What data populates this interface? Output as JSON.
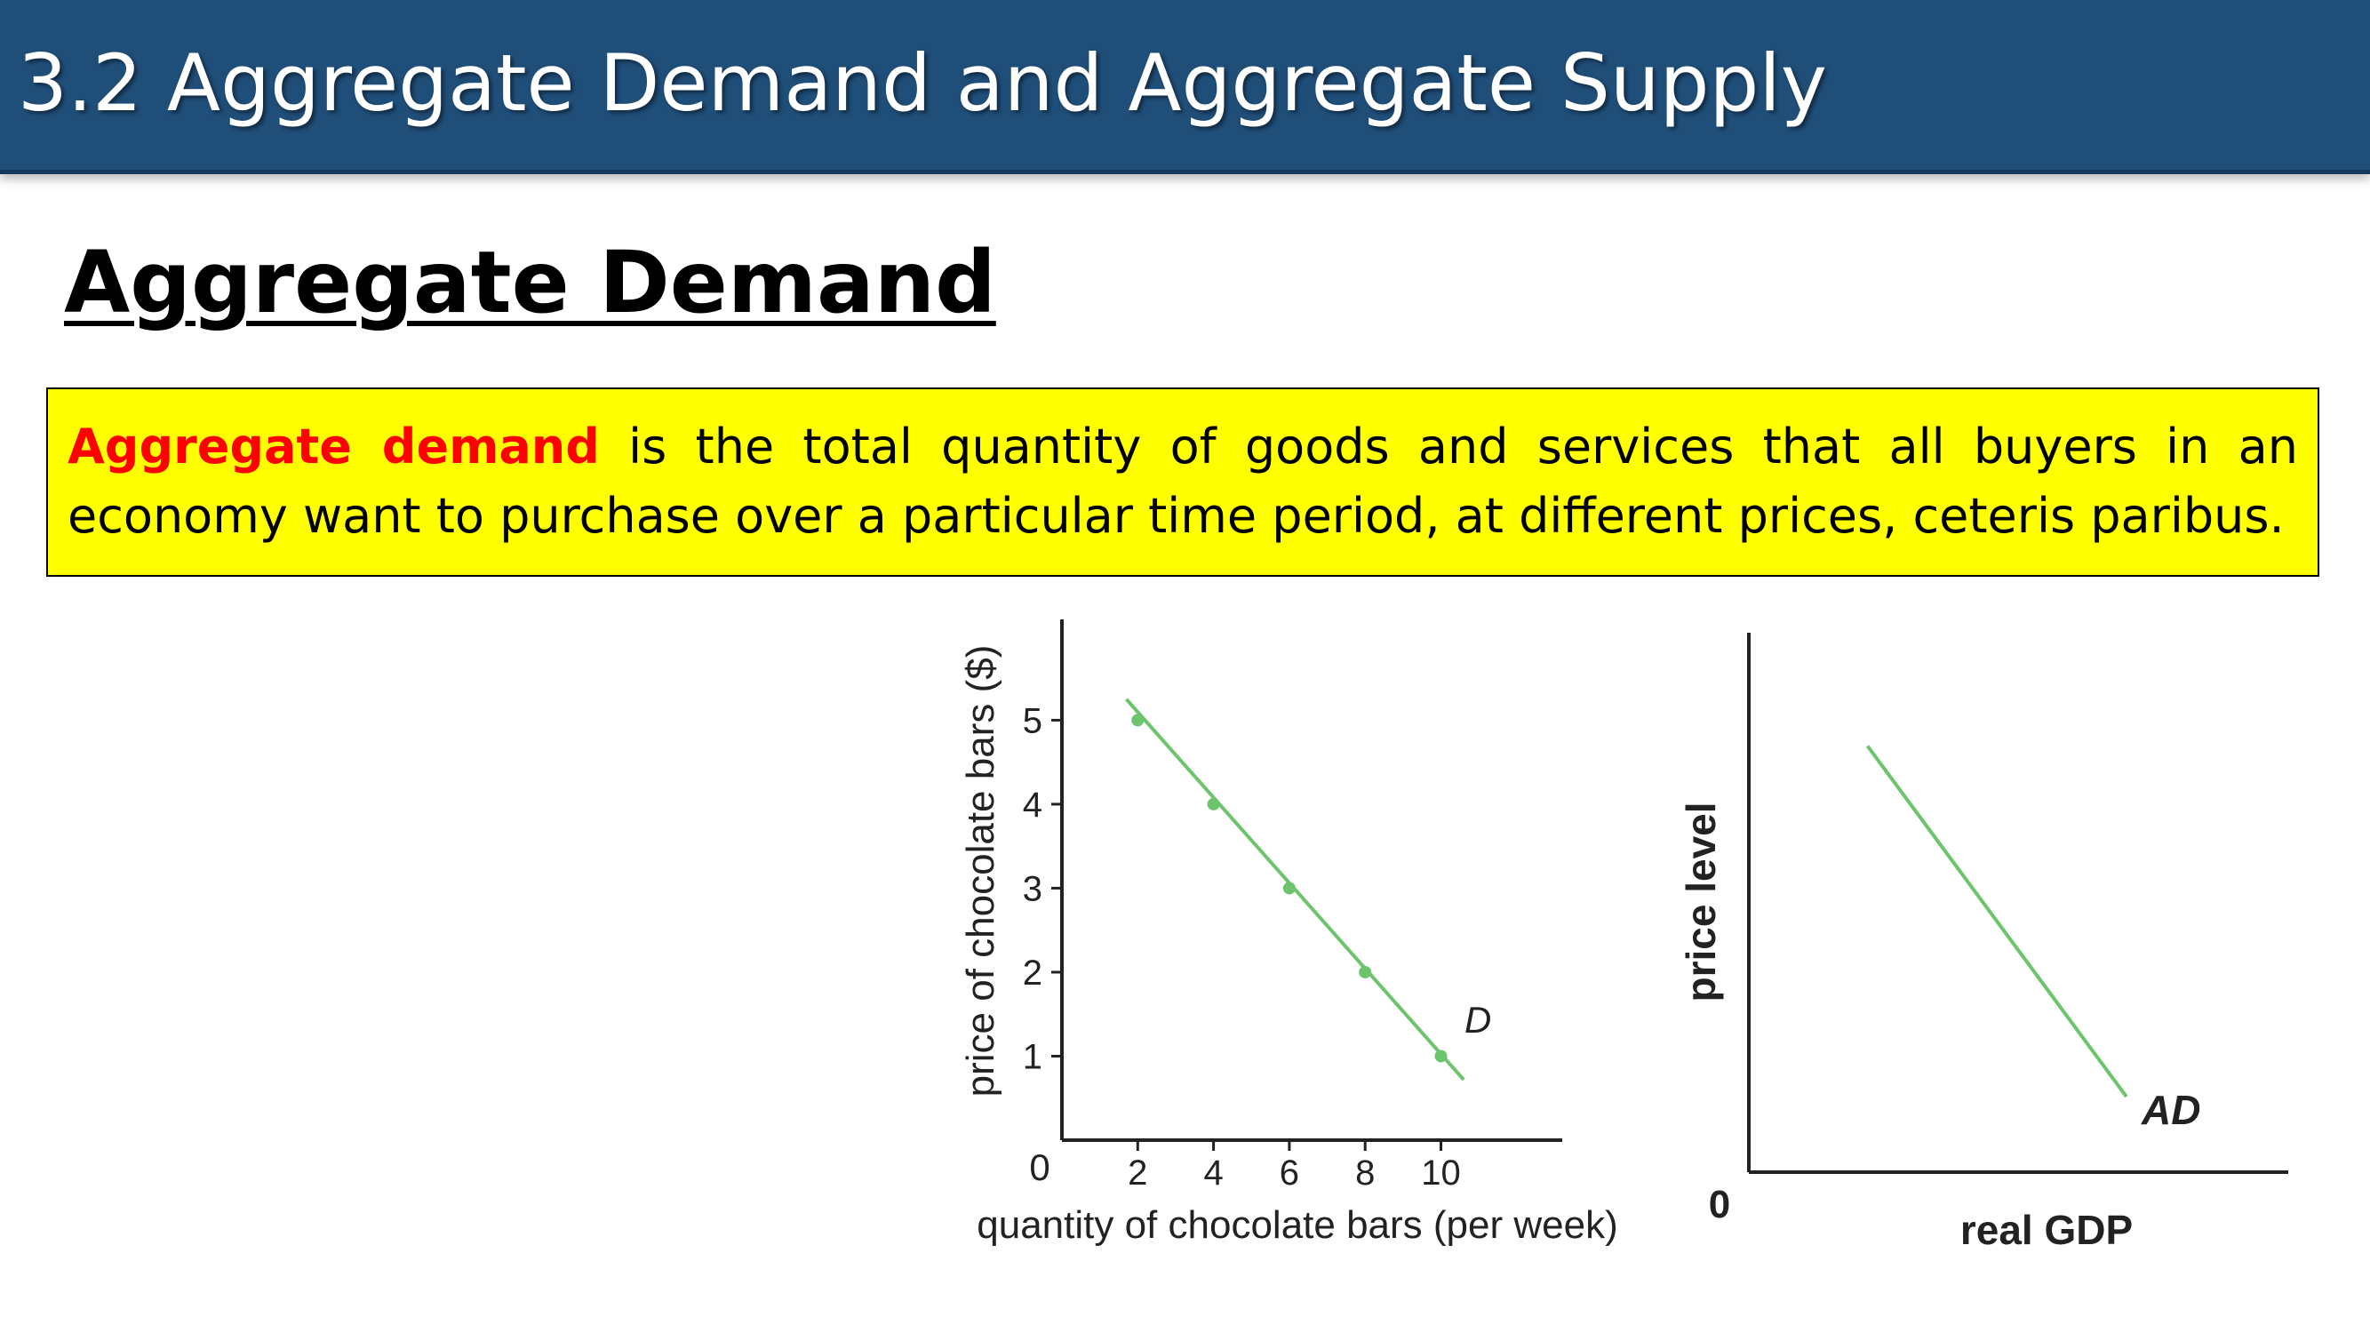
{
  "slide": {
    "title": "3.2 Aggregate Demand and Aggregate Supply",
    "heading": "Aggregate Demand",
    "definition_term": "Aggregate demand",
    "definition_rest": " is the total quantity of goods and services that all buyers in an economy want to purchase over a particular time period, at different prices, ceteris paribus.",
    "colors": {
      "title_bg": "#1f4e79",
      "highlight": "#ffff00",
      "term": "#ff0000",
      "curve": "#6cc46c"
    }
  },
  "chart_data": [
    {
      "type": "line",
      "title": "",
      "xlabel": "quantity of chocolate bars (per week)",
      "ylabel": "price of chocolate bars ($)",
      "origin_label": "0",
      "x_ticks": [
        2,
        4,
        6,
        8,
        10
      ],
      "y_ticks": [
        1,
        2,
        3,
        4,
        5
      ],
      "xlim": [
        0,
        13.2
      ],
      "ylim": [
        0,
        6.2
      ],
      "series": [
        {
          "name": "D",
          "x": [
            2,
            4,
            6,
            8,
            10
          ],
          "y": [
            5,
            4,
            3,
            2,
            1
          ],
          "line_start": [
            1.7,
            5.25
          ],
          "line_end": [
            10.6,
            0.72
          ]
        }
      ],
      "grid": false
    },
    {
      "type": "line",
      "title": "",
      "xlabel": "real GDP",
      "ylabel": "price level",
      "origin_label": "0",
      "series": [
        {
          "name": "AD",
          "x": [
            0.22,
            0.7
          ],
          "y": [
            0.79,
            0.14
          ]
        }
      ],
      "xlim": [
        0,
        1
      ],
      "ylim": [
        0,
        1
      ],
      "grid": false
    }
  ]
}
